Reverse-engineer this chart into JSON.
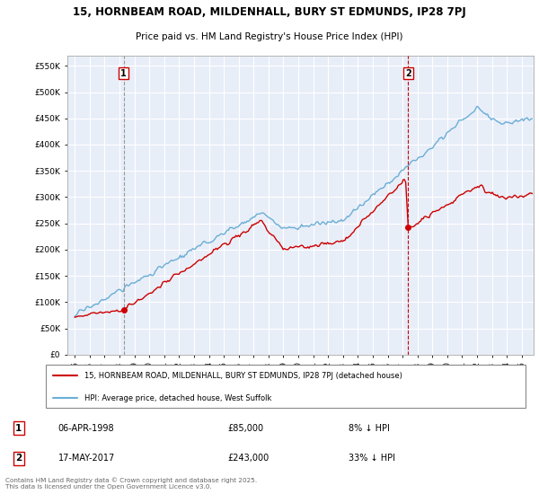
{
  "title_line1": "15, HORNBEAM ROAD, MILDENHALL, BURY ST EDMUNDS, IP28 7PJ",
  "title_line2": "Price paid vs. HM Land Registry's House Price Index (HPI)",
  "background_color": "#ffffff",
  "plot_bg_color": "#e8eef8",
  "grid_color": "#ffffff",
  "sale1": {
    "date_num": 1998.27,
    "price": 85000,
    "label": "1",
    "text": "06-APR-1998",
    "amount": "£85,000",
    "note": "8% ↓ HPI"
  },
  "sale2": {
    "date_num": 2017.38,
    "price": 243000,
    "label": "2",
    "text": "17-MAY-2017",
    "amount": "£243,000",
    "note": "33% ↓ HPI"
  },
  "ylim": [
    0,
    570000
  ],
  "xlim_start": 1994.5,
  "xlim_end": 2025.8,
  "hpi_line_color": "#6baed6",
  "price_line_color": "#cc0000",
  "vline1_color": "#999999",
  "vline2_color": "#cc0000",
  "legend_label_price": "15, HORNBEAM ROAD, MILDENHALL, BURY ST EDMUNDS, IP28 7PJ (detached house)",
  "legend_label_hpi": "HPI: Average price, detached house, West Suffolk",
  "footer": "Contains HM Land Registry data © Crown copyright and database right 2025.\nThis data is licensed under the Open Government Licence v3.0.",
  "yticks": [
    0,
    50000,
    100000,
    150000,
    200000,
    250000,
    300000,
    350000,
    400000,
    450000,
    500000,
    550000
  ],
  "ytick_labels": [
    "£0",
    "£50K",
    "£100K",
    "£150K",
    "£200K",
    "£250K",
    "£300K",
    "£350K",
    "£400K",
    "£450K",
    "£500K",
    "£550K"
  ],
  "xticks": [
    1995,
    1996,
    1997,
    1998,
    1999,
    2000,
    2001,
    2002,
    2003,
    2004,
    2005,
    2006,
    2007,
    2008,
    2009,
    2010,
    2011,
    2012,
    2013,
    2014,
    2015,
    2016,
    2017,
    2018,
    2019,
    2020,
    2021,
    2022,
    2023,
    2024,
    2025
  ]
}
